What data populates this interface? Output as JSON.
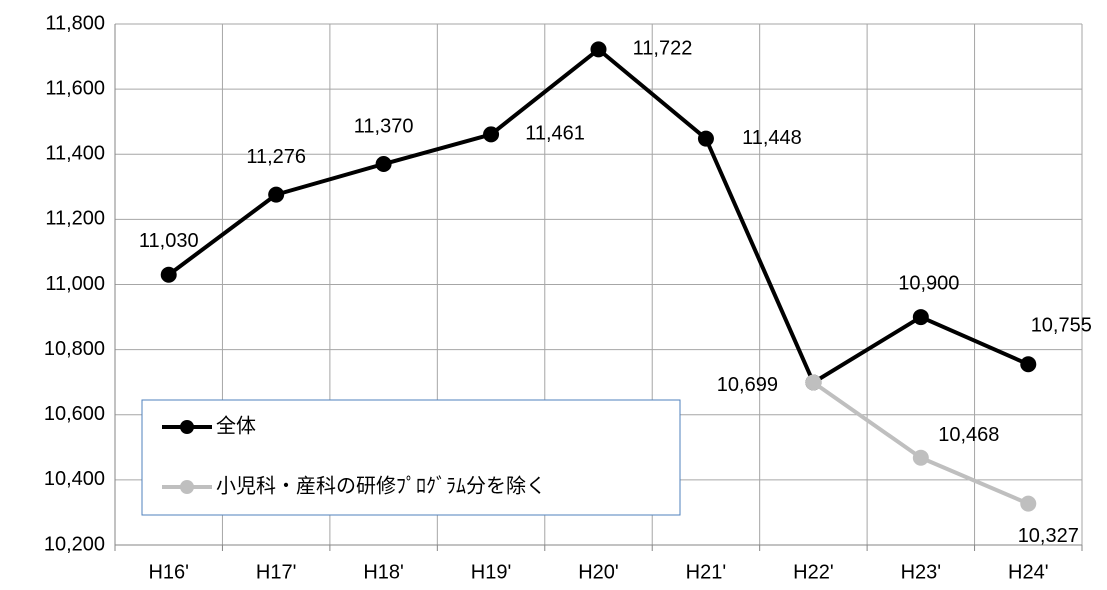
{
  "chart_data": {
    "type": "line",
    "categories": [
      "H16'",
      "H17'",
      "H18'",
      "H19'",
      "H20'",
      "H21'",
      "H22'",
      "H23'",
      "H24'"
    ],
    "series": [
      {
        "name": "全体",
        "color": "#000000",
        "values": [
          11030,
          11276,
          11370,
          11461,
          11722,
          11448,
          10699,
          10900,
          10755
        ],
        "value_labels": [
          "11,030",
          "11,276",
          "11,370",
          "11,461",
          "11,722",
          "11,448",
          "10,699",
          "10,900",
          "10,755"
        ]
      },
      {
        "name": "小児科・産科の研修ﾌﾟﾛｸﾞﾗﾑ分を除く",
        "color": "#bfbfbf",
        "values": [
          null,
          null,
          null,
          null,
          null,
          null,
          10699,
          10468,
          10327
        ],
        "value_labels": [
          null,
          null,
          null,
          null,
          null,
          null,
          null,
          "10,468",
          "10,327"
        ]
      }
    ],
    "ylim": [
      10200,
      11800
    ],
    "yticks": [
      {
        "value": 10200,
        "label": "10,200"
      },
      {
        "value": 10400,
        "label": "10,400"
      },
      {
        "value": 10600,
        "label": "10,600"
      },
      {
        "value": 10800,
        "label": "10,800"
      },
      {
        "value": 11000,
        "label": "11,000"
      },
      {
        "value": 11200,
        "label": "11,200"
      },
      {
        "value": 11400,
        "label": "11,400"
      },
      {
        "value": 11600,
        "label": "11,600"
      },
      {
        "value": 11800,
        "label": "11,800"
      }
    ],
    "grid": true,
    "legend": "bottom-left"
  }
}
